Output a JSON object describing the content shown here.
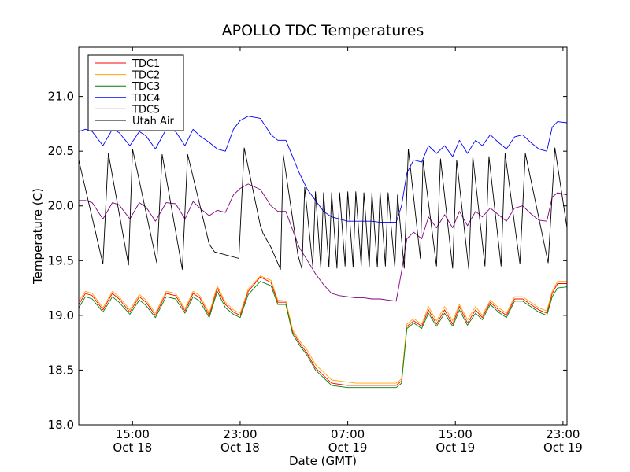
{
  "chart_data": {
    "type": "line",
    "title": "APOLLO TDC Temperatures",
    "xlabel": "Date (GMT)",
    "ylabel": "Temperature (C)",
    "x_unit": "hours since Oct 18 00:00 GMT",
    "xlim": [
      11.0,
      47.3
    ],
    "ylim": [
      18.0,
      21.45
    ],
    "grid": false,
    "legend_position": "top-left",
    "x_ticks": [
      {
        "value": 15,
        "line1": "15:00",
        "line2": "Oct 18"
      },
      {
        "value": 23,
        "line1": "23:00",
        "line2": "Oct 18"
      },
      {
        "value": 31,
        "line1": "07:00",
        "line2": "Oct 19"
      },
      {
        "value": 39,
        "line1": "15:00",
        "line2": "Oct 19"
      },
      {
        "value": 47,
        "line1": "23:00",
        "line2": "Oct 19"
      }
    ],
    "y_ticks": [
      {
        "value": 18.0,
        "label": "18.0"
      },
      {
        "value": 18.5,
        "label": "18.5"
      },
      {
        "value": 19.0,
        "label": "19.0"
      },
      {
        "value": 19.5,
        "label": "19.5"
      },
      {
        "value": 20.0,
        "label": "20.0"
      },
      {
        "value": 20.5,
        "label": "20.5"
      },
      {
        "value": 21.0,
        "label": "21.0"
      }
    ],
    "series": [
      {
        "name": "TDC1",
        "color": "#ff0000",
        "x": [
          11.0,
          11.5,
          12.0,
          12.8,
          13.5,
          14.0,
          14.8,
          15.5,
          16.0,
          16.7,
          17.5,
          18.2,
          18.9,
          19.5,
          20.0,
          20.7,
          21.3,
          21.9,
          22.5,
          23.0,
          23.6,
          24.5,
          25.3,
          25.8,
          26.4,
          26.9,
          27.4,
          28.0,
          28.6,
          29.2,
          29.8,
          30.4,
          31.0,
          31.6,
          32.2,
          32.8,
          33.4,
          34.0,
          34.6,
          35.0,
          35.4,
          35.9,
          36.5,
          37.0,
          37.6,
          38.2,
          38.8,
          39.3,
          39.9,
          40.5,
          41.0,
          41.6,
          42.2,
          42.8,
          43.4,
          44.0,
          44.6,
          45.2,
          45.8,
          46.2,
          46.6,
          47.3
        ],
        "y": [
          19.1,
          19.2,
          19.18,
          19.05,
          19.2,
          19.15,
          19.03,
          19.17,
          19.12,
          19.0,
          19.2,
          19.18,
          19.04,
          19.2,
          19.16,
          19.0,
          19.25,
          19.1,
          19.03,
          19.0,
          19.22,
          19.35,
          19.3,
          19.12,
          19.12,
          18.85,
          18.75,
          18.65,
          18.52,
          18.45,
          18.38,
          18.37,
          18.36,
          18.36,
          18.36,
          18.36,
          18.36,
          18.36,
          18.36,
          18.4,
          18.9,
          18.95,
          18.9,
          19.05,
          18.92,
          19.05,
          18.92,
          19.08,
          18.93,
          19.05,
          18.98,
          19.12,
          19.05,
          19.0,
          19.15,
          19.15,
          19.1,
          19.05,
          19.02,
          19.2,
          19.29,
          19.29
        ]
      },
      {
        "name": "TDC2",
        "color": "#ffa500",
        "x": [
          11.0,
          11.5,
          12.0,
          12.8,
          13.5,
          14.0,
          14.8,
          15.5,
          16.0,
          16.7,
          17.5,
          18.2,
          18.9,
          19.5,
          20.0,
          20.7,
          21.3,
          21.9,
          22.5,
          23.0,
          23.6,
          24.5,
          25.3,
          25.8,
          26.4,
          26.9,
          27.4,
          28.0,
          28.6,
          29.2,
          29.8,
          30.4,
          31.0,
          31.6,
          32.2,
          32.8,
          33.4,
          34.0,
          34.6,
          35.0,
          35.4,
          35.9,
          36.5,
          37.0,
          37.6,
          38.2,
          38.8,
          39.3,
          39.9,
          40.5,
          41.0,
          41.6,
          42.2,
          42.8,
          43.4,
          44.0,
          44.6,
          45.2,
          45.8,
          46.2,
          46.6,
          47.3
        ],
        "y": [
          19.13,
          19.22,
          19.2,
          19.07,
          19.22,
          19.17,
          19.05,
          19.19,
          19.14,
          19.02,
          19.22,
          19.2,
          19.06,
          19.22,
          19.18,
          19.02,
          19.27,
          19.12,
          19.05,
          19.02,
          19.24,
          19.36,
          19.32,
          19.14,
          19.13,
          18.87,
          18.77,
          18.68,
          18.55,
          18.48,
          18.41,
          18.4,
          18.39,
          18.38,
          18.38,
          18.38,
          18.38,
          18.38,
          18.38,
          18.42,
          18.92,
          18.97,
          18.92,
          19.08,
          18.95,
          19.08,
          18.95,
          19.1,
          18.96,
          19.08,
          19.0,
          19.14,
          19.07,
          19.02,
          19.17,
          19.17,
          19.12,
          19.07,
          19.04,
          19.22,
          19.31,
          19.31
        ]
      },
      {
        "name": "TDC3",
        "color": "#008000",
        "x": [
          11.0,
          11.5,
          12.0,
          12.8,
          13.5,
          14.0,
          14.8,
          15.5,
          16.0,
          16.7,
          17.5,
          18.2,
          18.9,
          19.5,
          20.0,
          20.7,
          21.3,
          21.9,
          22.5,
          23.0,
          23.6,
          24.5,
          25.3,
          25.8,
          26.4,
          26.9,
          27.4,
          28.0,
          28.6,
          29.2,
          29.8,
          30.4,
          31.0,
          31.6,
          32.2,
          32.8,
          33.4,
          34.0,
          34.6,
          35.0,
          35.4,
          35.9,
          36.5,
          37.0,
          37.6,
          38.2,
          38.8,
          39.3,
          39.9,
          40.5,
          41.0,
          41.6,
          42.2,
          42.8,
          43.4,
          44.0,
          44.6,
          45.2,
          45.8,
          46.2,
          46.6,
          47.3
        ],
        "y": [
          19.07,
          19.17,
          19.15,
          19.03,
          19.17,
          19.12,
          19.01,
          19.14,
          19.09,
          18.98,
          19.17,
          19.15,
          19.02,
          19.17,
          19.13,
          18.98,
          19.22,
          19.07,
          19.01,
          18.98,
          19.19,
          19.31,
          19.27,
          19.1,
          19.1,
          18.83,
          18.73,
          18.63,
          18.5,
          18.43,
          18.36,
          18.35,
          18.34,
          18.34,
          18.34,
          18.34,
          18.34,
          18.34,
          18.34,
          18.38,
          18.88,
          18.93,
          18.88,
          19.02,
          18.9,
          19.02,
          18.9,
          19.05,
          18.91,
          19.02,
          18.96,
          19.1,
          19.03,
          18.98,
          19.13,
          19.13,
          19.08,
          19.03,
          19.0,
          19.17,
          19.25,
          19.26
        ]
      },
      {
        "name": "TDC4",
        "color": "#0000ff",
        "x": [
          11.0,
          11.5,
          12.0,
          12.8,
          13.5,
          14.0,
          14.8,
          15.5,
          16.0,
          16.7,
          17.5,
          18.2,
          18.9,
          19.5,
          20.0,
          20.7,
          21.3,
          21.9,
          22.5,
          23.0,
          23.6,
          24.5,
          25.3,
          25.8,
          26.4,
          26.9,
          27.4,
          28.0,
          28.6,
          29.2,
          29.8,
          30.4,
          31.0,
          31.6,
          32.2,
          32.8,
          33.4,
          34.0,
          34.6,
          35.0,
          35.4,
          35.9,
          36.5,
          37.0,
          37.6,
          38.2,
          38.8,
          39.3,
          39.9,
          40.5,
          41.0,
          41.6,
          42.2,
          42.8,
          43.4,
          44.0,
          44.6,
          45.2,
          45.8,
          46.2,
          46.6,
          47.3
        ],
        "y": [
          20.68,
          20.7,
          20.68,
          20.55,
          20.7,
          20.67,
          20.55,
          20.68,
          20.64,
          20.52,
          20.7,
          20.68,
          20.55,
          20.7,
          20.64,
          20.58,
          20.52,
          20.5,
          20.7,
          20.78,
          20.82,
          20.8,
          20.65,
          20.6,
          20.6,
          20.45,
          20.3,
          20.15,
          20.05,
          19.95,
          19.9,
          19.88,
          19.86,
          19.86,
          19.86,
          19.86,
          19.85,
          19.85,
          19.85,
          20.0,
          20.3,
          20.42,
          20.4,
          20.55,
          20.48,
          20.55,
          20.45,
          20.6,
          20.48,
          20.6,
          20.55,
          20.65,
          20.58,
          20.52,
          20.63,
          20.65,
          20.58,
          20.52,
          20.5,
          20.72,
          20.77,
          20.76
        ]
      },
      {
        "name": "TDC5",
        "color": "#800080",
        "x": [
          11.0,
          11.5,
          12.0,
          12.8,
          13.5,
          14.0,
          14.8,
          15.5,
          16.0,
          16.7,
          17.5,
          18.2,
          18.9,
          19.5,
          20.0,
          20.7,
          21.3,
          21.9,
          22.5,
          23.0,
          23.6,
          24.5,
          25.3,
          25.8,
          26.4,
          26.9,
          27.4,
          28.0,
          28.6,
          29.2,
          29.8,
          30.4,
          31.0,
          31.6,
          32.2,
          32.8,
          33.4,
          34.0,
          34.6,
          35.0,
          35.4,
          35.9,
          36.5,
          37.0,
          37.6,
          38.2,
          38.8,
          39.3,
          39.9,
          40.5,
          41.0,
          41.6,
          42.2,
          42.8,
          43.4,
          44.0,
          44.6,
          45.2,
          45.8,
          46.2,
          46.6,
          47.3
        ],
        "y": [
          20.05,
          20.05,
          20.03,
          19.88,
          20.03,
          20.01,
          19.88,
          20.03,
          19.99,
          19.86,
          20.03,
          20.02,
          19.88,
          20.04,
          19.98,
          19.91,
          19.96,
          19.94,
          20.1,
          20.16,
          20.2,
          20.15,
          20.0,
          19.95,
          19.95,
          19.78,
          19.62,
          19.5,
          19.38,
          19.28,
          19.2,
          19.18,
          19.17,
          19.16,
          19.16,
          19.15,
          19.15,
          19.14,
          19.13,
          19.4,
          19.7,
          19.76,
          19.7,
          19.9,
          19.8,
          19.92,
          19.8,
          19.95,
          19.82,
          19.95,
          19.9,
          19.98,
          19.92,
          19.86,
          19.98,
          20.0,
          19.93,
          19.87,
          19.86,
          20.08,
          20.12,
          20.1
        ]
      },
      {
        "name": "Utah Air",
        "color": "#000000",
        "x": [
          11.0,
          12.8,
          13.2,
          14.7,
          15.0,
          16.8,
          17.2,
          18.7,
          19.1,
          20.7,
          21.1,
          22.9,
          23.3,
          24.5,
          24.7,
          25.3,
          26.0,
          26.2,
          27.3,
          27.6,
          27.8,
          28.4,
          28.6,
          29.0,
          29.2,
          29.6,
          29.8,
          30.2,
          30.4,
          30.8,
          31.0,
          31.4,
          31.6,
          32.0,
          32.2,
          32.6,
          32.8,
          33.2,
          33.4,
          33.8,
          34.0,
          34.5,
          34.7,
          35.2,
          35.5,
          36.4,
          36.6,
          37.6,
          37.9,
          38.8,
          39.1,
          40.0,
          40.3,
          41.2,
          41.5,
          42.4,
          42.7,
          43.8,
          44.2,
          45.9,
          46.4,
          47.3
        ],
        "y": [
          20.42,
          19.47,
          20.48,
          19.46,
          20.52,
          19.48,
          20.47,
          19.42,
          20.47,
          19.65,
          19.58,
          19.52,
          20.53,
          19.82,
          19.75,
          19.62,
          19.42,
          20.47,
          19.55,
          19.42,
          20.17,
          19.45,
          20.13,
          19.43,
          20.12,
          19.44,
          20.12,
          19.43,
          20.12,
          19.45,
          20.13,
          19.44,
          20.13,
          19.45,
          20.12,
          19.44,
          20.12,
          19.44,
          20.13,
          19.45,
          20.12,
          19.44,
          20.1,
          19.43,
          20.52,
          19.52,
          20.42,
          19.45,
          20.43,
          19.43,
          20.42,
          19.42,
          20.45,
          19.45,
          20.45,
          19.45,
          20.48,
          19.47,
          20.48,
          19.48,
          20.53,
          19.8
        ]
      }
    ]
  }
}
